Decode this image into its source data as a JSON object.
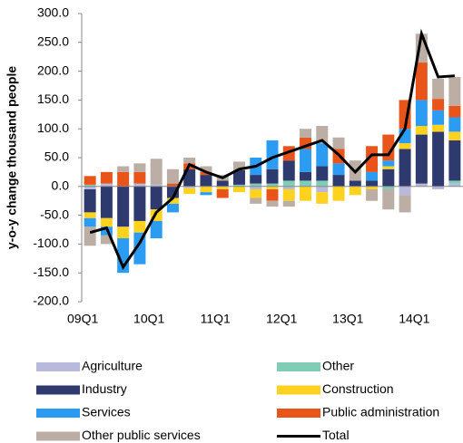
{
  "chart_data": {
    "type": "bar",
    "y_label": "y-o-y change thousand people",
    "categories": [
      "09Q1",
      null,
      null,
      null,
      "10Q1",
      null,
      null,
      null,
      "11Q1",
      null,
      null,
      null,
      "12Q1",
      null,
      null,
      null,
      "13Q1",
      null,
      null,
      null,
      "14Q1",
      null,
      null
    ],
    "series": [
      {
        "name": "Agriculture",
        "color": "#b9b9dc",
        "type": "bar",
        "values": [
          -5,
          5,
          0,
          5,
          3,
          0,
          -3,
          0,
          0,
          0,
          -5,
          0,
          -5,
          0,
          -10,
          0,
          0,
          0,
          0,
          -15,
          5,
          -5,
          5
        ]
      },
      {
        "name": "Other",
        "color": "#7fcdb5",
        "type": "bar",
        "values": [
          3,
          0,
          0,
          0,
          0,
          0,
          0,
          0,
          0,
          3,
          5,
          5,
          10,
          10,
          10,
          0,
          0,
          0,
          -5,
          0,
          0,
          0,
          5
        ]
      },
      {
        "name": "Industry",
        "color": "#2e3a6e",
        "type": "bar",
        "values": [
          -40,
          -55,
          -70,
          -60,
          -40,
          -20,
          30,
          20,
          10,
          25,
          15,
          25,
          35,
          15,
          25,
          20,
          10,
          10,
          30,
          65,
          85,
          95,
          70
        ]
      },
      {
        "name": "Construction",
        "color": "#ffd21f",
        "type": "bar",
        "values": [
          -10,
          -15,
          -20,
          -20,
          -20,
          -10,
          -10,
          -10,
          -5,
          -10,
          -15,
          -5,
          -20,
          -25,
          -20,
          -25,
          -15,
          -5,
          5,
          10,
          15,
          12,
          15
        ]
      },
      {
        "name": "Services",
        "color": "#2b9cf2",
        "type": "bar",
        "values": [
          -15,
          -15,
          -60,
          -55,
          -30,
          -15,
          0,
          -5,
          0,
          0,
          30,
          50,
          0,
          40,
          40,
          20,
          0,
          15,
          10,
          25,
          45,
          25,
          25
        ]
      },
      {
        "name": "Public administration",
        "color": "#e8541a",
        "type": "bar",
        "values": [
          15,
          20,
          25,
          20,
          0,
          5,
          10,
          5,
          -15,
          0,
          0,
          -20,
          25,
          20,
          0,
          25,
          0,
          45,
          45,
          50,
          65,
          20,
          20
        ]
      },
      {
        "name": "Other public services",
        "color": "#bcaea5",
        "type": "bar",
        "values": [
          -33,
          -15,
          10,
          15,
          45,
          25,
          10,
          10,
          10,
          15,
          -10,
          -10,
          -10,
          15,
          30,
          20,
          35,
          -20,
          -35,
          -30,
          50,
          35,
          50
        ]
      },
      {
        "name": "Total",
        "color": "#000000",
        "type": "line",
        "values": [
          -80,
          -72,
          -140,
          -98,
          -45,
          -20,
          38,
          25,
          15,
          30,
          35,
          50,
          60,
          70,
          80,
          55,
          25,
          55,
          55,
          100,
          265,
          190,
          192
        ]
      }
    ],
    "ylim": [
      -200,
      300
    ],
    "yticks": [
      {
        "value": -200,
        "label": "-200.0"
      },
      {
        "value": -150,
        "label": "-150.0"
      },
      {
        "value": -100,
        "label": "-100.0"
      },
      {
        "value": -50,
        "label": "-50.0"
      },
      {
        "value": 0,
        "label": "0.0"
      },
      {
        "value": 50,
        "label": "50.0"
      },
      {
        "value": 100,
        "label": "100.0"
      },
      {
        "value": 150,
        "label": "150.0"
      },
      {
        "value": 200,
        "label": "200.0"
      },
      {
        "value": 250,
        "label": "250.0"
      },
      {
        "value": 300,
        "label": "300.0"
      }
    ]
  }
}
